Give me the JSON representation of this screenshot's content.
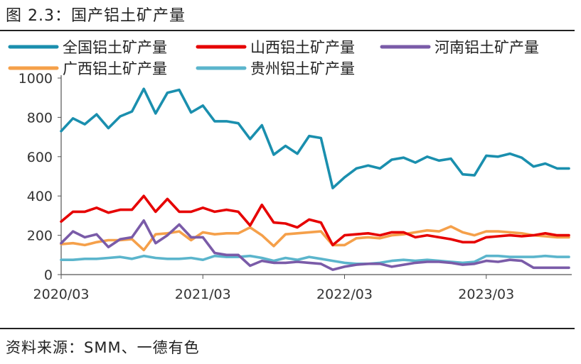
{
  "figure": {
    "title": "图 2.3：国产铝土矿产量",
    "source": "资料来源：SMM、一德有色"
  },
  "chart_data": {
    "type": "line",
    "title": "国产铝土矿产量",
    "xlabel": "",
    "ylabel": "",
    "ylim": [
      0,
      1000
    ],
    "yticks": [
      0,
      200,
      400,
      600,
      800,
      1000
    ],
    "xtick_labels": [
      "2020/03",
      "2021/03",
      "2022/03",
      "2023/03"
    ],
    "xtick_indices": [
      0,
      12,
      24,
      36
    ],
    "x_count": 44,
    "legend": [
      "全国铝土矿产量",
      "山西铝土矿产量",
      "河南铝土矿产量",
      "广西铝土矿产量",
      "贵州铝土矿产量"
    ],
    "series": [
      {
        "name": "全国铝土矿产量",
        "color": "#1a8fae",
        "values": [
          730,
          795,
          765,
          815,
          745,
          805,
          830,
          945,
          820,
          925,
          940,
          825,
          860,
          780,
          780,
          770,
          690,
          760,
          610,
          655,
          615,
          705,
          695,
          440,
          495,
          540,
          555,
          540,
          585,
          595,
          570,
          600,
          580,
          590,
          510,
          505,
          605,
          600,
          615,
          595,
          550,
          565,
          540,
          540
        ]
      },
      {
        "name": "山西铝土矿产量",
        "color": "#e60000",
        "values": [
          270,
          320,
          320,
          340,
          315,
          330,
          330,
          400,
          320,
          385,
          320,
          320,
          340,
          320,
          330,
          320,
          250,
          355,
          265,
          260,
          240,
          280,
          265,
          150,
          200,
          205,
          210,
          200,
          215,
          215,
          190,
          200,
          190,
          180,
          165,
          165,
          190,
          195,
          200,
          195,
          200,
          210,
          200,
          200
        ]
      },
      {
        "name": "河南铝土矿产量",
        "color": "#7a5ba8",
        "values": [
          160,
          220,
          190,
          205,
          140,
          180,
          190,
          275,
          160,
          200,
          255,
          190,
          190,
          110,
          100,
          100,
          45,
          70,
          60,
          60,
          65,
          60,
          55,
          25,
          40,
          50,
          55,
          55,
          40,
          50,
          60,
          65,
          65,
          60,
          50,
          55,
          70,
          65,
          75,
          70,
          35,
          35,
          35,
          35
        ]
      },
      {
        "name": "广西铝土矿产量",
        "color": "#f5a04a",
        "values": [
          155,
          160,
          150,
          165,
          175,
          175,
          180,
          125,
          205,
          210,
          220,
          175,
          215,
          205,
          210,
          210,
          240,
          200,
          145,
          205,
          210,
          215,
          220,
          150,
          150,
          185,
          190,
          185,
          200,
          205,
          215,
          225,
          220,
          245,
          215,
          200,
          220,
          220,
          215,
          210,
          200,
          195,
          190,
          190
        ]
      },
      {
        "name": "贵州铝土矿产量",
        "color": "#5bb5cc",
        "values": [
          75,
          75,
          80,
          80,
          85,
          90,
          80,
          95,
          85,
          80,
          80,
          85,
          75,
          95,
          90,
          90,
          95,
          85,
          70,
          85,
          75,
          90,
          80,
          70,
          60,
          55,
          55,
          60,
          70,
          75,
          70,
          75,
          70,
          65,
          60,
          65,
          95,
          95,
          90,
          90,
          90,
          95,
          90,
          90
        ]
      }
    ]
  }
}
